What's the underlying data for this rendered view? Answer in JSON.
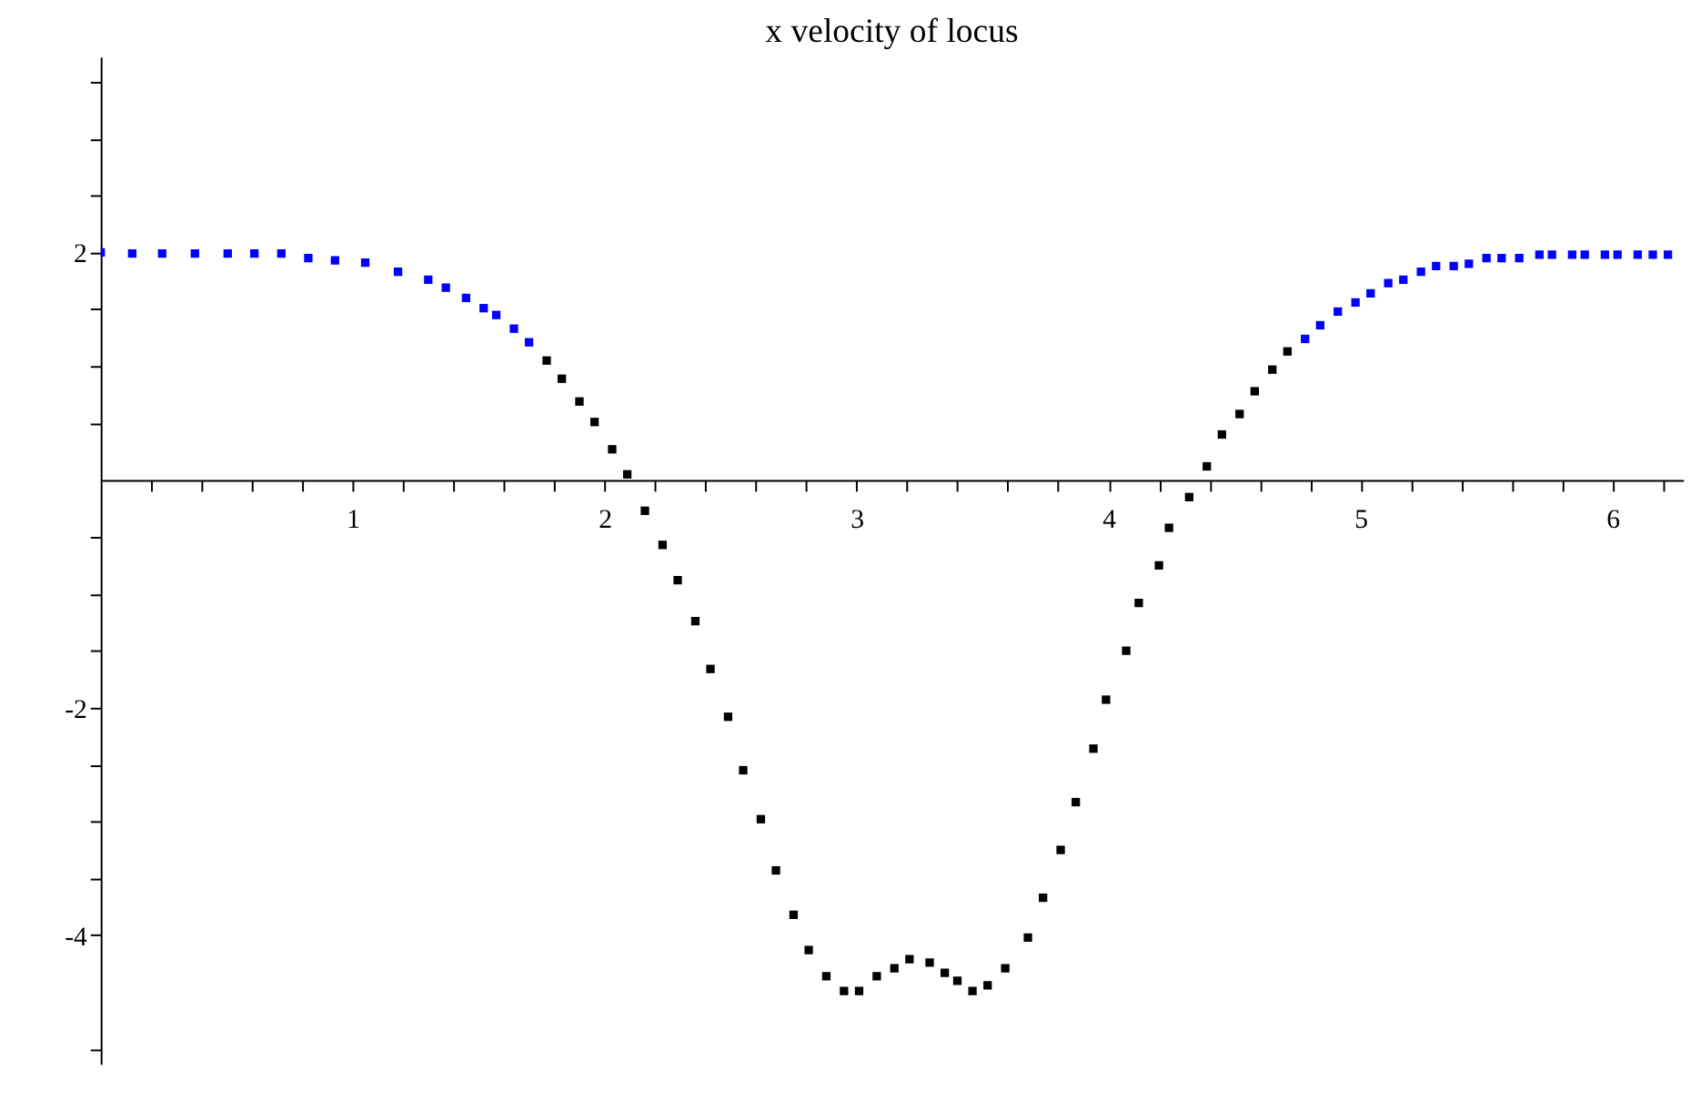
{
  "chart_data": {
    "type": "scatter",
    "title": "x velocity of locus",
    "marker": "square",
    "legend": false,
    "grid": false,
    "xlim": [
      0,
      6.28
    ],
    "ylim": [
      -5.13,
      3.72
    ],
    "xticks": [
      {
        "value": 0.2,
        "label": null
      },
      {
        "value": 0.4,
        "label": null
      },
      {
        "value": 0.6,
        "label": null
      },
      {
        "value": 0.8,
        "label": null
      },
      1,
      {
        "value": 1.2,
        "label": null
      },
      {
        "value": 1.4,
        "label": null
      },
      {
        "value": 1.6,
        "label": null
      },
      {
        "value": 1.8,
        "label": null
      },
      2,
      {
        "value": 2.2,
        "label": null
      },
      {
        "value": 2.4,
        "label": null
      },
      {
        "value": 2.6,
        "label": null
      },
      {
        "value": 2.8,
        "label": null
      },
      3,
      {
        "value": 3.2,
        "label": null
      },
      {
        "value": 3.4,
        "label": null
      },
      {
        "value": 3.6,
        "label": null
      },
      {
        "value": 3.8,
        "label": null
      },
      4,
      {
        "value": 4.2,
        "label": null
      },
      {
        "value": 4.4,
        "label": null
      },
      {
        "value": 4.6,
        "label": null
      },
      {
        "value": 4.8,
        "label": null
      },
      5,
      {
        "value": 5.2,
        "label": null
      },
      {
        "value": 5.4,
        "label": null
      },
      {
        "value": 5.6,
        "label": null
      },
      {
        "value": 5.8,
        "label": null
      },
      6,
      {
        "value": 6.2,
        "label": null
      }
    ],
    "yticks": [
      {
        "value": -5,
        "label": null
      },
      -4,
      {
        "value": -3.5,
        "label": null
      },
      {
        "value": -3,
        "label": null
      },
      {
        "value": -2.5,
        "label": null
      },
      -2,
      {
        "value": -1.5,
        "label": null
      },
      {
        "value": -1,
        "label": null
      },
      {
        "value": -0.5,
        "label": null
      },
      {
        "value": 0.5,
        "label": null
      },
      {
        "value": 1,
        "label": null
      },
      {
        "value": 1.5,
        "label": null
      },
      2,
      {
        "value": 2.5,
        "label": null
      },
      {
        "value": 3,
        "label": null
      },
      {
        "value": 3.5,
        "label": null
      }
    ],
    "series": [
      {
        "color": "#0000ff",
        "x": [
          0.0,
          0.125,
          0.244,
          0.374,
          0.504,
          0.61,
          0.717,
          0.824,
          0.93,
          1.05,
          1.18,
          1.3,
          1.37,
          1.45,
          1.52,
          1.57,
          1.64,
          1.7,
          4.78,
          4.84,
          4.91,
          4.98,
          5.04,
          5.11,
          5.17,
          5.24,
          5.3,
          5.37,
          5.43,
          5.5,
          5.56,
          5.63,
          5.71,
          5.76,
          5.84,
          5.89,
          5.97,
          6.02,
          6.1,
          6.16,
          6.22
        ],
        "values": [
          2.0,
          1.99,
          1.99,
          1.99,
          1.99,
          1.99,
          1.99,
          1.95,
          1.93,
          1.91,
          1.83,
          1.76,
          1.69,
          1.6,
          1.51,
          1.45,
          1.33,
          1.21,
          1.24,
          1.36,
          1.48,
          1.56,
          1.64,
          1.73,
          1.76,
          1.83,
          1.88,
          1.88,
          1.9,
          1.95,
          1.95,
          1.95,
          1.98,
          1.98,
          1.98,
          1.98,
          1.98,
          1.98,
          1.98,
          1.98,
          1.98
        ]
      },
      {
        "color": "#000000",
        "x": [
          1.77,
          1.83,
          1.9,
          1.96,
          2.03,
          2.09,
          2.16,
          2.23,
          2.29,
          2.36,
          2.42,
          2.49,
          2.55,
          2.62,
          2.68,
          2.75,
          2.81,
          2.88,
          2.95,
          3.01,
          3.08,
          3.15,
          3.21,
          3.29,
          3.35,
          3.4,
          3.46,
          3.52,
          3.59,
          3.68,
          3.74,
          3.81,
          3.87,
          3.94,
          3.99,
          4.07,
          4.12,
          4.2,
          4.24,
          4.32,
          4.39,
          4.45,
          4.52,
          4.58,
          4.65,
          4.71
        ],
        "values": [
          1.05,
          0.89,
          0.69,
          0.51,
          0.27,
          0.05,
          -0.27,
          -0.57,
          -0.88,
          -1.24,
          -1.66,
          -2.08,
          -2.55,
          -2.98,
          -3.43,
          -3.82,
          -4.13,
          -4.36,
          -4.49,
          -4.49,
          -4.36,
          -4.29,
          -4.21,
          -4.24,
          -4.33,
          -4.4,
          -4.49,
          -4.44,
          -4.29,
          -4.02,
          -3.67,
          -3.25,
          -2.83,
          -2.36,
          -1.93,
          -1.5,
          -1.08,
          -0.75,
          -0.42,
          -0.15,
          0.12,
          0.4,
          0.58,
          0.78,
          0.97,
          1.13
        ]
      }
    ]
  }
}
